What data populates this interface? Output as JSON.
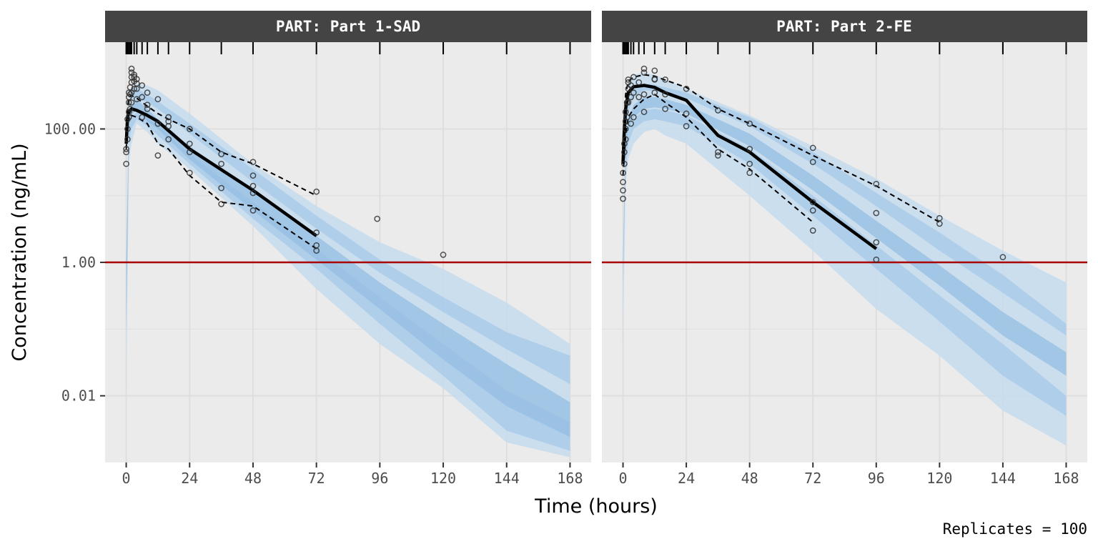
{
  "chart_data": {
    "type": "line",
    "x_label": "Time (hours)",
    "y_label": "Concentration (ng/mL)",
    "y_scale": "log10",
    "y_range": [
      0.001,
      2000
    ],
    "x_range": [
      -8,
      176
    ],
    "x_ticks": [
      0,
      24,
      48,
      72,
      96,
      120,
      144,
      168
    ],
    "x_tick_labels": [
      "0",
      "24",
      "48",
      "72",
      "96",
      "120",
      "144",
      "168"
    ],
    "y_ticks": [
      100,
      1,
      0.01
    ],
    "y_tick_labels": [
      "100.00",
      "1.00",
      "0.01"
    ],
    "reference_line": {
      "y": 1,
      "color": "#aa0000"
    },
    "caption": "Replicates = 100",
    "grid": true,
    "colors": {
      "panel_bg": "#ebebeb",
      "grid": "#dedede",
      "strip_bg": "#444444",
      "band_outer": "#c6dcef",
      "band_mid": "#a8c9e8",
      "band_inner": "#94bde1"
    },
    "panels": [
      {
        "strip": "PART: Part 1-SAD",
        "bins": [
          0,
          0.25,
          0.5,
          1,
          1.5,
          2,
          3,
          4,
          6,
          8,
          12,
          16,
          24,
          36,
          48,
          72,
          96,
          120,
          144,
          168
        ],
        "pred_x": [
          0,
          1,
          2,
          4,
          8,
          12,
          24,
          48,
          72,
          96,
          120,
          144,
          168
        ],
        "pi_outer_low": [
          0.01,
          30,
          60,
          120,
          90,
          60,
          25,
          3.5,
          0.4,
          0.06,
          0.013,
          0.002,
          0.0012
        ],
        "pi_outer_high": [
          1,
          200,
          400,
          480,
          450,
          380,
          170,
          30,
          7,
          2,
          0.8,
          0.25,
          0.06
        ],
        "median_low": [
          0.1,
          90,
          160,
          200,
          130,
          100,
          35,
          6,
          1.1,
          0.2,
          0.035,
          0.007,
          0.0024
        ],
        "median_high": [
          1,
          130,
          220,
          280,
          200,
          140,
          55,
          12,
          2.5,
          0.5,
          0.12,
          0.03,
          0.008
        ],
        "pi_low_band_low": [
          0.1,
          60,
          100,
          140,
          110,
          80,
          30,
          4.5,
          0.8,
          0.12,
          0.02,
          0.003,
          0.0015
        ],
        "pi_low_band_high": [
          1,
          90,
          150,
          180,
          150,
          110,
          42,
          8,
          1.6,
          0.3,
          0.06,
          0.012,
          0.004
        ],
        "pi_high_band_low": [
          1,
          150,
          280,
          300,
          250,
          200,
          85,
          16,
          3.2,
          0.7,
          0.18,
          0.05,
          0.015
        ],
        "pi_high_band_high": [
          1,
          200,
          400,
          400,
          330,
          260,
          120,
          25,
          5,
          1.1,
          0.3,
          0.09,
          0.04
        ],
        "obs_median": {
          "x": [
            0,
            0.5,
            1,
            2,
            4,
            8,
            12,
            24,
            48,
            72
          ],
          "y": [
            60,
            150,
            180,
            200,
            190,
            160,
            130,
            50,
            12,
            2.5
          ]
        },
        "obs_p5": {
          "x": [
            0,
            0.5,
            1,
            2,
            4,
            8,
            12,
            16,
            24,
            36,
            48,
            72
          ],
          "y": [
            50,
            120,
            140,
            160,
            150,
            120,
            60,
            50,
            20,
            8,
            7,
            1.6
          ]
        },
        "obs_p95": {
          "x": [
            0,
            0.5,
            1,
            2,
            3,
            4,
            8,
            12,
            16,
            24,
            36,
            48,
            72
          ],
          "y": [
            70,
            200,
            300,
            320,
            300,
            290,
            220,
            170,
            140,
            100,
            45,
            30,
            10
          ]
        },
        "obs_points": {
          "x": [
            0,
            0,
            0,
            0.5,
            0.5,
            0.5,
            1,
            1,
            1,
            1,
            1,
            1.5,
            1.5,
            1.5,
            2,
            2,
            2,
            2,
            2,
            2,
            3,
            3,
            3,
            3,
            4,
            4,
            4,
            4,
            6,
            6,
            6,
            8,
            8,
            8,
            12,
            12,
            12,
            16,
            16,
            16,
            16,
            24,
            24,
            24,
            24,
            36,
            36,
            36,
            36,
            48,
            48,
            48,
            48,
            48,
            72,
            72,
            72,
            72,
            95,
            120
          ],
          "y": [
            30,
            45,
            50,
            70,
            100,
            140,
            150,
            180,
            250,
            300,
            350,
            200,
            330,
            420,
            250,
            350,
            500,
            600,
            700,
            800,
            400,
            520,
            600,
            650,
            280,
            400,
            480,
            560,
            150,
            300,
            450,
            200,
            230,
            350,
            40,
            120,
            280,
            70,
            110,
            150,
            130,
            22,
            45,
            60,
            100,
            7.5,
            13,
            30,
            42,
            6,
            11,
            14,
            20,
            32,
            1.5,
            1.8,
            2.8,
            11.5,
            4.5,
            1.3
          ]
        }
      },
      {
        "strip": "PART: Part 2-FE",
        "pred_x": [
          0,
          1,
          2,
          4,
          8,
          12,
          16,
          24,
          48,
          72,
          96,
          120,
          144,
          168
        ],
        "pi_outer_low": [
          0.05,
          15,
          35,
          60,
          90,
          100,
          80,
          60,
          10,
          1.5,
          0.2,
          0.04,
          0.006,
          0.0018
        ],
        "pi_outer_high": [
          1,
          200,
          420,
          650,
          700,
          650,
          560,
          400,
          160,
          55,
          18,
          5,
          1.5,
          0.5
        ],
        "median_low": [
          0.5,
          40,
          90,
          150,
          200,
          210,
          200,
          170,
          55,
          12,
          2.3,
          0.45,
          0.08,
          0.02
        ],
        "median_high": [
          1,
          70,
          140,
          230,
          300,
          300,
          280,
          230,
          85,
          20,
          4.2,
          0.9,
          0.18,
          0.045
        ],
        "pi_low_band_low": [
          0.5,
          25,
          60,
          100,
          130,
          140,
          130,
          110,
          30,
          5,
          0.8,
          0.13,
          0.02,
          0.005
        ],
        "pi_low_band_high": [
          1,
          40,
          85,
          140,
          190,
          200,
          190,
          160,
          50,
          10,
          1.8,
          0.32,
          0.06,
          0.01
        ],
        "pi_high_band_low": [
          1,
          90,
          180,
          300,
          380,
          370,
          340,
          290,
          110,
          30,
          7,
          1.5,
          0.35,
          0.08
        ],
        "pi_high_band_high": [
          1,
          130,
          250,
          400,
          480,
          460,
          420,
          350,
          150,
          45,
          11,
          2.8,
          0.65,
          0.12
        ],
        "obs_median": {
          "x": [
            0,
            0.5,
            1,
            2,
            4,
            8,
            12,
            16,
            24,
            36,
            48,
            72,
            96
          ],
          "y": [
            30,
            100,
            200,
            350,
            430,
            450,
            420,
            350,
            270,
            80,
            45,
            8,
            1.6
          ]
        },
        "obs_p5": {
          "x": [
            0,
            0.5,
            1,
            2,
            4,
            8,
            12,
            16,
            24,
            36,
            48,
            72
          ],
          "y": [
            20,
            40,
            80,
            150,
            200,
            280,
            330,
            250,
            150,
            50,
            25,
            4
          ]
        },
        "obs_p95": {
          "x": [
            0,
            0.5,
            1,
            2,
            4,
            8,
            12,
            16,
            24,
            36,
            48,
            72,
            96,
            120
          ],
          "y": [
            50,
            150,
            330,
            520,
            600,
            650,
            620,
            540,
            420,
            200,
            120,
            40,
            14,
            4
          ]
        },
        "obs_points": {
          "x": [
            0,
            0,
            0,
            0,
            0.5,
            0.5,
            0.5,
            1,
            1,
            1,
            1,
            1.5,
            1.5,
            2,
            2,
            2,
            2,
            3,
            3,
            3,
            4,
            4,
            4,
            6,
            6,
            8,
            8,
            8,
            8,
            12,
            12,
            12,
            12,
            16,
            16,
            16,
            24,
            24,
            24,
            36,
            36,
            36,
            48,
            48,
            48,
            48,
            72,
            72,
            72,
            72,
            72,
            96,
            96,
            96,
            96,
            120,
            120,
            144
          ],
          "y": [
            9,
            12,
            16,
            22,
            30,
            45,
            60,
            70,
            100,
            130,
            180,
            150,
            250,
            250,
            400,
            500,
            550,
            120,
            300,
            450,
            150,
            350,
            600,
            300,
            500,
            180,
            330,
            700,
            800,
            350,
            550,
            560,
            750,
            200,
            330,
            550,
            110,
            170,
            400,
            40,
            45,
            190,
            22,
            30,
            50,
            120,
            3,
            6,
            8,
            32,
            52,
            1.1,
            2,
            5.5,
            15,
            3.8,
            4.6,
            1.2
          ]
        }
      }
    ]
  }
}
